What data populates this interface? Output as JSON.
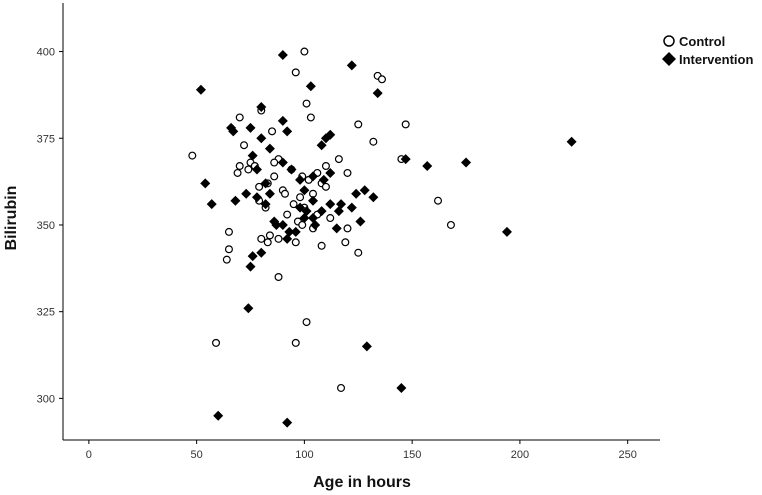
{
  "chart_data": {
    "type": "scatter",
    "title": "",
    "xlabel": "Age in hours",
    "ylabel": "Bilirubin",
    "xlim": [
      -12,
      265
    ],
    "ylim": [
      288,
      414
    ],
    "x_ticks": [
      0,
      50,
      100,
      150,
      200,
      250
    ],
    "y_ticks": [
      300,
      325,
      350,
      375,
      400
    ],
    "grid": false,
    "legend_position": "top-right",
    "series": [
      {
        "name": "Control",
        "marker": "open-circle",
        "color": "#000000",
        "points": [
          [
            100,
            400
          ],
          [
            96,
            394
          ],
          [
            134,
            393
          ],
          [
            136,
            392
          ],
          [
            101,
            385
          ],
          [
            80,
            383
          ],
          [
            103,
            381
          ],
          [
            70,
            381
          ],
          [
            125,
            379
          ],
          [
            147,
            379
          ],
          [
            85,
            377
          ],
          [
            72,
            373
          ],
          [
            132,
            374
          ],
          [
            48,
            370
          ],
          [
            75,
            368
          ],
          [
            88,
            369
          ],
          [
            116,
            369
          ],
          [
            145,
            369
          ],
          [
            70,
            367
          ],
          [
            77,
            367
          ],
          [
            86,
            368
          ],
          [
            110,
            367
          ],
          [
            69,
            365
          ],
          [
            74,
            366
          ],
          [
            94,
            366
          ],
          [
            99,
            364
          ],
          [
            106,
            365
          ],
          [
            120,
            365
          ],
          [
            86,
            364
          ],
          [
            102,
            363
          ],
          [
            83,
            362
          ],
          [
            108,
            362
          ],
          [
            79,
            361
          ],
          [
            90,
            360
          ],
          [
            110,
            361
          ],
          [
            79,
            357
          ],
          [
            91,
            359
          ],
          [
            98,
            358
          ],
          [
            104,
            359
          ],
          [
            82,
            355
          ],
          [
            92,
            353
          ],
          [
            95,
            356
          ],
          [
            100,
            355
          ],
          [
            106,
            353
          ],
          [
            97,
            351
          ],
          [
            112,
            352
          ],
          [
            162,
            357
          ],
          [
            120,
            349
          ],
          [
            99,
            350
          ],
          [
            104,
            349
          ],
          [
            84,
            347
          ],
          [
            80,
            346
          ],
          [
            88,
            346
          ],
          [
            83,
            345
          ],
          [
            96,
            345
          ],
          [
            108,
            344
          ],
          [
            119,
            345
          ],
          [
            65,
            348
          ],
          [
            65,
            343
          ],
          [
            64,
            340
          ],
          [
            125,
            342
          ],
          [
            168,
            350
          ],
          [
            88,
            335
          ],
          [
            101,
            322
          ],
          [
            59,
            316
          ],
          [
            96,
            316
          ],
          [
            117,
            303
          ]
        ]
      },
      {
        "name": "Intervention",
        "marker": "filled-diamond",
        "color": "#000000",
        "points": [
          [
            90,
            399
          ],
          [
            122,
            396
          ],
          [
            103,
            390
          ],
          [
            52,
            389
          ],
          [
            134,
            388
          ],
          [
            80,
            384
          ],
          [
            90,
            380
          ],
          [
            66,
            378
          ],
          [
            67,
            377
          ],
          [
            75,
            378
          ],
          [
            80,
            375
          ],
          [
            92,
            377
          ],
          [
            110,
            375
          ],
          [
            112,
            376
          ],
          [
            224,
            374
          ],
          [
            84,
            372
          ],
          [
            108,
            373
          ],
          [
            76,
            370
          ],
          [
            90,
            368
          ],
          [
            147,
            369
          ],
          [
            175,
            368
          ],
          [
            157,
            367
          ],
          [
            78,
            366
          ],
          [
            94,
            366
          ],
          [
            112,
            365
          ],
          [
            104,
            364
          ],
          [
            54,
            362
          ],
          [
            82,
            362
          ],
          [
            98,
            363
          ],
          [
            109,
            363
          ],
          [
            100,
            360
          ],
          [
            128,
            360
          ],
          [
            124,
            359
          ],
          [
            73,
            359
          ],
          [
            78,
            358
          ],
          [
            84,
            359
          ],
          [
            104,
            357
          ],
          [
            132,
            358
          ],
          [
            68,
            357
          ],
          [
            57,
            356
          ],
          [
            82,
            356
          ],
          [
            98,
            355
          ],
          [
            112,
            356
          ],
          [
            122,
            355
          ],
          [
            117,
            356
          ],
          [
            116,
            354
          ],
          [
            101,
            354
          ],
          [
            104,
            352
          ],
          [
            108,
            354
          ],
          [
            100,
            352
          ],
          [
            105,
            350
          ],
          [
            86,
            351
          ],
          [
            90,
            350
          ],
          [
            93,
            348
          ],
          [
            96,
            348
          ],
          [
            115,
            349
          ],
          [
            126,
            351
          ],
          [
            87,
            350
          ],
          [
            92,
            346
          ],
          [
            194,
            348
          ],
          [
            76,
            341
          ],
          [
            80,
            342
          ],
          [
            75,
            338
          ],
          [
            74,
            326
          ],
          [
            129,
            315
          ],
          [
            60,
            295
          ],
          [
            92,
            293
          ],
          [
            145,
            303
          ]
        ]
      }
    ]
  }
}
